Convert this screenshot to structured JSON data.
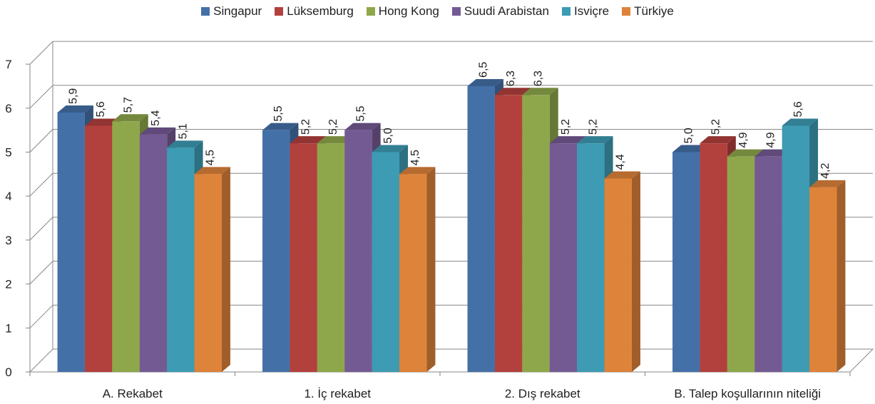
{
  "chart_data": {
    "type": "bar",
    "title": "",
    "xlabel": "",
    "ylabel": "",
    "ylim": [
      0,
      7
    ],
    "yticks": [
      0,
      1,
      2,
      3,
      4,
      5,
      6,
      7
    ],
    "grid": true,
    "legend_position": "top",
    "three_d": true,
    "categories": [
      "A. Rekabet",
      "1. İç rekabet",
      "2. Dış rekabet",
      "B. Talep koşullarının niteliği"
    ],
    "series": [
      {
        "name": "Singapur",
        "color": "#4470a8",
        "values": [
          5.9,
          5.5,
          6.5,
          5.0
        ],
        "labels": [
          "5,9",
          "5,5",
          "6,5",
          "5,0"
        ]
      },
      {
        "name": "Lüksemburg",
        "color": "#b2403d",
        "values": [
          5.6,
          5.2,
          6.3,
          5.2
        ],
        "labels": [
          "5,6",
          "5,2",
          "6,3",
          "5,2"
        ]
      },
      {
        "name": "Hong Kong",
        "color": "#8ea74a",
        "values": [
          5.7,
          5.2,
          6.3,
          4.9
        ],
        "labels": [
          "5,7",
          "5,2",
          "6,3",
          "4,9"
        ]
      },
      {
        "name": "Suudi Arabistan",
        "color": "#745a93",
        "values": [
          5.4,
          5.5,
          5.2,
          4.9
        ],
        "labels": [
          "5,4",
          "5,5",
          "5,2",
          "4,9"
        ]
      },
      {
        "name": "Isviçre",
        "color": "#3d9bb3",
        "values": [
          5.1,
          5.0,
          5.2,
          5.6
        ],
        "labels": [
          "5,1",
          "5,0",
          "5,2",
          "5,6"
        ]
      },
      {
        "name": "Türkiye",
        "color": "#de833a",
        "values": [
          4.5,
          4.5,
          4.4,
          4.2
        ],
        "labels": [
          "4,5",
          "4,5",
          "4,4",
          "4,2"
        ]
      }
    ]
  }
}
